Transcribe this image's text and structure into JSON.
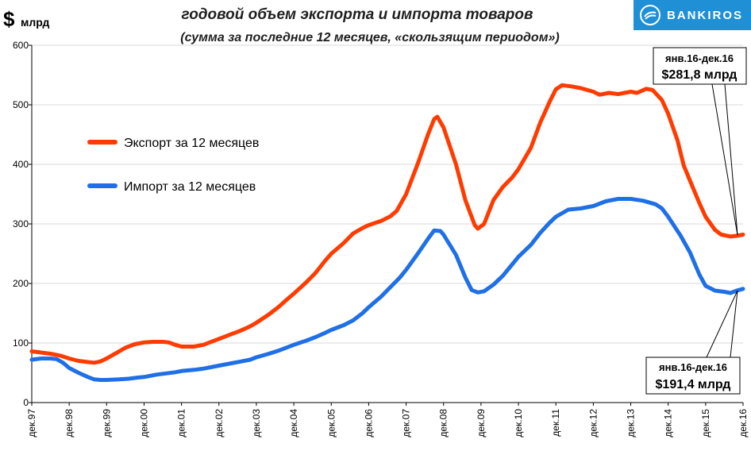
{
  "header": {
    "unit_symbol": "$",
    "unit_label": "млрд",
    "title_line1": "годовой объем экспорта и импорта товаров",
    "title_line2": "(сумма за последние  12 месяцев, «скользящим  периодом»)"
  },
  "logo": {
    "text": "BANKIROS"
  },
  "colors": {
    "export": "#ff3b00",
    "import": "#1f6fe6",
    "logo_bg": "#1f8fd6",
    "grid": "#d9d9d9"
  },
  "callouts": {
    "export": {
      "period": "янв.16-дек.16",
      "value": "$281,8 млрд"
    },
    "import": {
      "period": "янв.16-дек.16",
      "value": "$191,4 млрд"
    }
  },
  "chart_data": {
    "type": "line",
    "title": "годовой объем экспорта и импорта товаров",
    "subtitle": "(сумма за последние  12 месяцев, «скользящим  периодом»)",
    "ylabel": "млрд",
    "ylim": [
      0,
      600
    ],
    "yticks": [
      0,
      100,
      200,
      300,
      400,
      500,
      600
    ],
    "xlim": [
      1997.917,
      2016.917
    ],
    "xtick_labels": [
      "дек.97",
      "дек.98",
      "дек.99",
      "дек.00",
      "дек.01",
      "дек.02",
      "дек.03",
      "дек.04",
      "дек.05",
      "дек.06",
      "дек.07",
      "дек.08",
      "дек.09",
      "дек.10",
      "дек.11",
      "дек.12",
      "дек.13",
      "дек.14",
      "дек.15",
      "дек.16"
    ],
    "grid": "horizontal",
    "legend_position": "left",
    "series": [
      {
        "name": "Экспорт за 12 месяцев",
        "color": "#ff3b00",
        "points": [
          [
            1997.917,
            86
          ],
          [
            1998.167,
            84
          ],
          [
            1998.417,
            82
          ],
          [
            1998.667,
            79
          ],
          [
            1998.917,
            74
          ],
          [
            1999.167,
            70
          ],
          [
            1999.417,
            68
          ],
          [
            1999.583,
            67
          ],
          [
            1999.75,
            69
          ],
          [
            1999.917,
            74
          ],
          [
            2000.167,
            83
          ],
          [
            2000.417,
            92
          ],
          [
            2000.667,
            98
          ],
          [
            2000.917,
            101
          ],
          [
            2001.167,
            102
          ],
          [
            2001.417,
            102
          ],
          [
            2001.583,
            101
          ],
          [
            2001.75,
            97
          ],
          [
            2001.917,
            94
          ],
          [
            2002.25,
            94
          ],
          [
            2002.5,
            97
          ],
          [
            2002.75,
            103
          ],
          [
            2002.917,
            107
          ],
          [
            2003.25,
            115
          ],
          [
            2003.5,
            121
          ],
          [
            2003.75,
            128
          ],
          [
            2003.917,
            134
          ],
          [
            2004.25,
            148
          ],
          [
            2004.5,
            160
          ],
          [
            2004.75,
            174
          ],
          [
            2004.917,
            183
          ],
          [
            2005.25,
            202
          ],
          [
            2005.5,
            218
          ],
          [
            2005.75,
            238
          ],
          [
            2005.917,
            250
          ],
          [
            2006.25,
            268
          ],
          [
            2006.5,
            284
          ],
          [
            2006.75,
            293
          ],
          [
            2006.917,
            298
          ],
          [
            2007.25,
            305
          ],
          [
            2007.5,
            313
          ],
          [
            2007.667,
            322
          ],
          [
            2007.917,
            350
          ],
          [
            2008.25,
            405
          ],
          [
            2008.5,
            450
          ],
          [
            2008.667,
            476
          ],
          [
            2008.75,
            480
          ],
          [
            2008.917,
            462
          ],
          [
            2009.25,
            400
          ],
          [
            2009.5,
            340
          ],
          [
            2009.75,
            298
          ],
          [
            2009.833,
            292
          ],
          [
            2010.0,
            300
          ],
          [
            2010.25,
            340
          ],
          [
            2010.5,
            362
          ],
          [
            2010.75,
            378
          ],
          [
            2010.917,
            392
          ],
          [
            2011.25,
            428
          ],
          [
            2011.5,
            470
          ],
          [
            2011.75,
            505
          ],
          [
            2011.917,
            526
          ],
          [
            2012.083,
            533
          ],
          [
            2012.333,
            531
          ],
          [
            2012.583,
            528
          ],
          [
            2012.917,
            522
          ],
          [
            2013.083,
            517
          ],
          [
            2013.333,
            520
          ],
          [
            2013.583,
            518
          ],
          [
            2013.917,
            522
          ],
          [
            2014.083,
            520
          ],
          [
            2014.333,
            527
          ],
          [
            2014.5,
            525
          ],
          [
            2014.75,
            508
          ],
          [
            2014.917,
            485
          ],
          [
            2015.167,
            440
          ],
          [
            2015.333,
            398
          ],
          [
            2015.583,
            360
          ],
          [
            2015.75,
            335
          ],
          [
            2015.917,
            312
          ],
          [
            2016.167,
            290
          ],
          [
            2016.333,
            282
          ],
          [
            2016.583,
            279
          ],
          [
            2016.75,
            280
          ],
          [
            2016.917,
            282
          ]
        ]
      },
      {
        "name": "Импорт за 12 месяцев",
        "color": "#1f6fe6",
        "points": [
          [
            1997.917,
            72
          ],
          [
            1998.167,
            74
          ],
          [
            1998.417,
            74
          ],
          [
            1998.583,
            73
          ],
          [
            1998.75,
            67
          ],
          [
            1998.917,
            58
          ],
          [
            1999.167,
            50
          ],
          [
            1999.417,
            43
          ],
          [
            1999.583,
            39
          ],
          [
            1999.75,
            38
          ],
          [
            1999.917,
            38
          ],
          [
            2000.25,
            39
          ],
          [
            2000.5,
            40
          ],
          [
            2000.75,
            42
          ],
          [
            2000.917,
            43
          ],
          [
            2001.25,
            47
          ],
          [
            2001.5,
            49
          ],
          [
            2001.75,
            51
          ],
          [
            2001.917,
            53
          ],
          [
            2002.25,
            55
          ],
          [
            2002.5,
            57
          ],
          [
            2002.75,
            60
          ],
          [
            2002.917,
            62
          ],
          [
            2003.25,
            66
          ],
          [
            2003.5,
            69
          ],
          [
            2003.75,
            72
          ],
          [
            2003.917,
            76
          ],
          [
            2004.25,
            82
          ],
          [
            2004.5,
            87
          ],
          [
            2004.75,
            93
          ],
          [
            2004.917,
            97
          ],
          [
            2005.25,
            104
          ],
          [
            2005.5,
            110
          ],
          [
            2005.75,
            117
          ],
          [
            2005.917,
            122
          ],
          [
            2006.25,
            130
          ],
          [
            2006.5,
            138
          ],
          [
            2006.75,
            150
          ],
          [
            2006.917,
            160
          ],
          [
            2007.25,
            178
          ],
          [
            2007.5,
            194
          ],
          [
            2007.75,
            210
          ],
          [
            2007.917,
            223
          ],
          [
            2008.25,
            252
          ],
          [
            2008.5,
            275
          ],
          [
            2008.667,
            289
          ],
          [
            2008.833,
            288
          ],
          [
            2008.917,
            282
          ],
          [
            2009.25,
            248
          ],
          [
            2009.5,
            210
          ],
          [
            2009.667,
            189
          ],
          [
            2009.833,
            185
          ],
          [
            2010.0,
            187
          ],
          [
            2010.25,
            198
          ],
          [
            2010.5,
            213
          ],
          [
            2010.75,
            232
          ],
          [
            2010.917,
            245
          ],
          [
            2011.25,
            265
          ],
          [
            2011.5,
            285
          ],
          [
            2011.75,
            302
          ],
          [
            2011.917,
            312
          ],
          [
            2012.25,
            324
          ],
          [
            2012.583,
            326
          ],
          [
            2012.917,
            330
          ],
          [
            2013.25,
            338
          ],
          [
            2013.583,
            342
          ],
          [
            2013.917,
            342
          ],
          [
            2014.25,
            339
          ],
          [
            2014.583,
            333
          ],
          [
            2014.75,
            326
          ],
          [
            2014.917,
            312
          ],
          [
            2015.25,
            280
          ],
          [
            2015.5,
            252
          ],
          [
            2015.75,
            215
          ],
          [
            2015.917,
            196
          ],
          [
            2016.167,
            188
          ],
          [
            2016.417,
            186
          ],
          [
            2016.583,
            184
          ],
          [
            2016.75,
            188
          ],
          [
            2016.917,
            191
          ]
        ]
      }
    ]
  }
}
